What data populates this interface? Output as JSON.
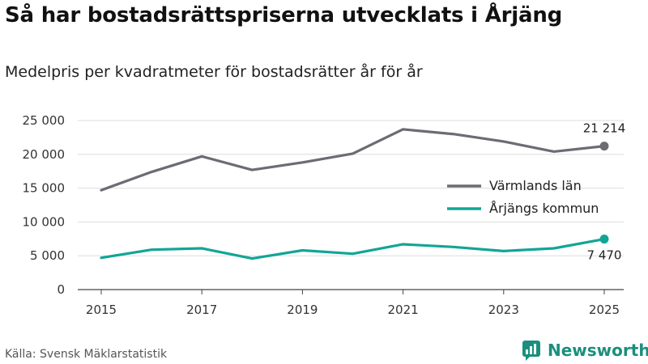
{
  "title": "Så har bostadsrättspriserna utvecklats i Årjäng",
  "subtitle": "Medelpris per kvadratmeter för bostadsrätter år för år",
  "source": "Källa: Svensk Mäklarstatistik",
  "brand": "Newsworthy",
  "colors": {
    "varmland": "#6d6b73",
    "arjang": "#12a596",
    "grid": "#dddddd",
    "brand": "#1a8f7d"
  },
  "chart_data": {
    "type": "line",
    "title": "Så har bostadsrättspriserna utvecklats i Årjäng",
    "subtitle": "Medelpris per kvadratmeter för bostadsrätter år för år",
    "xlabel": "",
    "ylabel": "",
    "x": [
      2015,
      2016,
      2017,
      2018,
      2019,
      2020,
      2021,
      2022,
      2023,
      2024,
      2025
    ],
    "xticks": [
      "2015",
      "2017",
      "2019",
      "2021",
      "2023",
      "2025"
    ],
    "ylim": [
      0,
      25000
    ],
    "yticks": [
      0,
      5000,
      10000,
      15000,
      20000,
      25000
    ],
    "ytick_labels": [
      "0",
      "5 000",
      "10 000",
      "15 000",
      "20 000",
      "25 000"
    ],
    "legend_position": "right",
    "series": [
      {
        "name": "Värmlands län",
        "color": "#6d6b73",
        "end_label": "21 214",
        "values": [
          14700,
          17400,
          19700,
          17700,
          18800,
          20100,
          23700,
          23000,
          21900,
          20400,
          21214
        ]
      },
      {
        "name": "Årjängs kommun",
        "color": "#12a596",
        "end_label": "7 470",
        "values": [
          4700,
          5900,
          6100,
          4600,
          5800,
          5300,
          6700,
          6300,
          5700,
          6100,
          7470
        ]
      }
    ]
  }
}
